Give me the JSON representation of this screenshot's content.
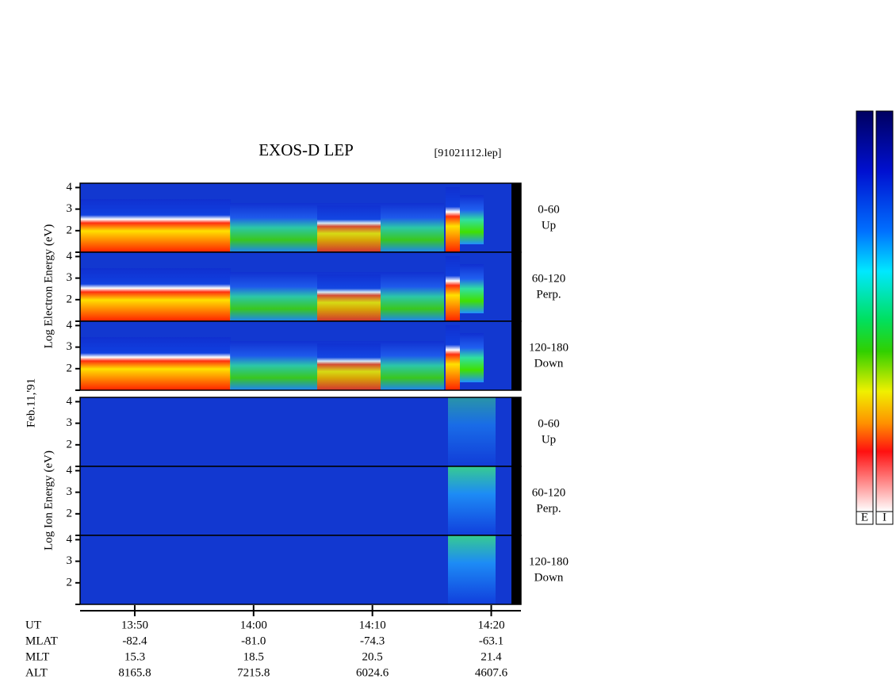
{
  "title": "EXOS-D LEP",
  "file": "[91021112.lep]",
  "date": "Feb.11,'91",
  "chart_data": {
    "type": "spectrogram",
    "ylim": [
      1,
      4.2
    ],
    "yticks": [
      2,
      3,
      4
    ],
    "xlim": [
      825.4,
      862.5
    ],
    "xticks": [
      {
        "value": 830,
        "label": "13:50"
      },
      {
        "value": 840,
        "label": "14:00"
      },
      {
        "value": 850,
        "label": "14:10"
      },
      {
        "value": 860,
        "label": "14:20"
      }
    ],
    "groups": [
      {
        "label": "Log Electron Energy (eV)",
        "panels": [
          {
            "range": "0-60",
            "direction": "Up"
          },
          {
            "range": "60-120",
            "direction": "Perp."
          },
          {
            "range": "120-180",
            "direction": "Down"
          }
        ]
      },
      {
        "label": "Log Ion Energy (eV)",
        "panels": [
          {
            "range": "0-60",
            "direction": "Up"
          },
          {
            "range": "60-120",
            "direction": "Perp."
          },
          {
            "range": "120-180",
            "direction": "Down"
          }
        ]
      }
    ]
  },
  "table": {
    "rows": [
      {
        "label": "UT"
      },
      {
        "label": "MLAT",
        "values": [
          "-82.4",
          "-81.0",
          "-74.3",
          "-63.1"
        ]
      },
      {
        "label": "MLT",
        "values": [
          "15.3",
          "18.5",
          "20.5",
          "21.4"
        ]
      },
      {
        "label": "ALT",
        "values": [
          "8165.8",
          "7215.8",
          "6024.6",
          "4607.6"
        ]
      }
    ]
  },
  "colorbars": [
    "E",
    "I"
  ]
}
